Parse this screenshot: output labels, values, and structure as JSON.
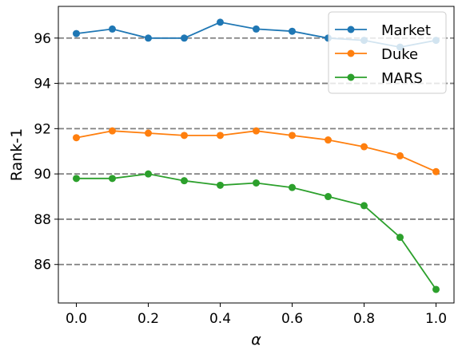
{
  "chart_data": {
    "type": "line",
    "title": "",
    "xlabel": "α",
    "ylabel": "Rank-1",
    "xlim": [
      -0.05,
      1.05
    ],
    "ylim": [
      84.3,
      97.4
    ],
    "x": [
      0.0,
      0.1,
      0.2,
      0.3,
      0.4,
      0.5,
      0.6,
      0.7,
      0.8,
      0.9,
      1.0
    ],
    "x_ticks": [
      0.0,
      0.2,
      0.4,
      0.6,
      0.8,
      1.0
    ],
    "x_tick_labels": [
      "0.0",
      "0.2",
      "0.4",
      "0.6",
      "0.8",
      "1.0"
    ],
    "y_ticks": [
      86,
      88,
      90,
      92,
      94,
      96
    ],
    "y_tick_labels": [
      "86",
      "88",
      "90",
      "92",
      "94",
      "96"
    ],
    "grid": "horizontal dashed at y ticks",
    "legend_position": "top-right",
    "series": [
      {
        "name": "Market",
        "color": "#1f77b4",
        "values": [
          96.2,
          96.4,
          96.0,
          96.0,
          96.7,
          96.4,
          96.3,
          96.0,
          95.9,
          95.6,
          95.9
        ]
      },
      {
        "name": "Duke",
        "color": "#ff7f0e",
        "values": [
          91.6,
          91.9,
          91.8,
          91.7,
          91.7,
          91.9,
          91.7,
          91.5,
          91.2,
          90.8,
          90.1
        ]
      },
      {
        "name": "MARS",
        "color": "#2ca02c",
        "values": [
          89.8,
          89.8,
          90.0,
          89.7,
          89.5,
          89.6,
          89.4,
          89.0,
          88.6,
          87.2,
          84.9
        ]
      }
    ]
  }
}
